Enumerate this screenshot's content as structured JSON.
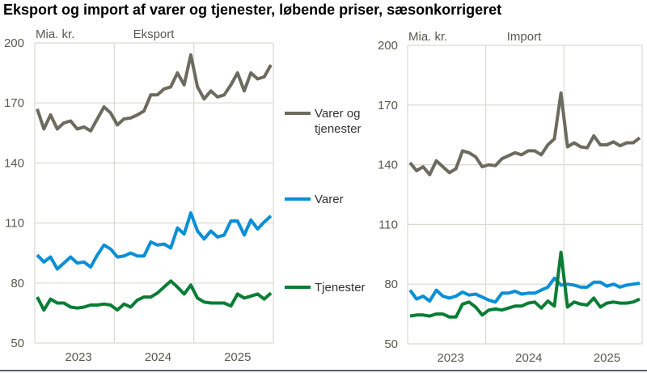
{
  "title": "Eksport og import af varer og tjenester, løbende priser, sæsonkorrigeret",
  "legend": [
    {
      "label_lines": [
        "Varer og",
        "tjenester"
      ],
      "color": "#6b6b5e"
    },
    {
      "label_lines": [
        "Varer"
      ],
      "color": "#0a8fd6"
    },
    {
      "label_lines": [
        "Tjenester"
      ],
      "color": "#0a7d35"
    }
  ],
  "chart_data": [
    {
      "type": "line",
      "title": "Eksport",
      "ylabel": "Mia. kr.",
      "ylim": [
        50,
        200
      ],
      "yticks": [
        50,
        80,
        110,
        140,
        170,
        200
      ],
      "xtick_labels": [
        "2023",
        "2024",
        "2025"
      ],
      "grid": true,
      "series": [
        {
          "name": "Varer og tjenester",
          "color": "#6b6b5e",
          "values": [
            167,
            157,
            164,
            157,
            160,
            161,
            157,
            158,
            156,
            162,
            168,
            165,
            159,
            162,
            162.5,
            164,
            166,
            174,
            174,
            177,
            178,
            185,
            179,
            194,
            178,
            172,
            176,
            173,
            174,
            179,
            185,
            176,
            185,
            182,
            183,
            189
          ]
        },
        {
          "name": "Varer",
          "color": "#0a8fd6",
          "values": [
            94,
            90.5,
            93,
            87,
            90,
            93,
            90,
            90.5,
            88,
            94,
            99,
            97,
            93,
            93.5,
            95,
            93.5,
            93.5,
            100.5,
            99,
            99.5,
            97.5,
            107.5,
            104.5,
            115,
            106,
            102,
            106,
            103,
            104,
            111,
            111,
            104,
            111.5,
            107,
            110.5,
            113.5
          ]
        },
        {
          "name": "Tjenester",
          "color": "#0a7d35",
          "values": [
            73,
            66.5,
            72,
            70,
            70,
            68,
            67.5,
            68,
            69,
            69,
            69.5,
            69,
            66.5,
            69.5,
            68,
            71.5,
            73,
            73,
            75,
            78,
            81,
            78,
            74.5,
            79,
            72.5,
            70.5,
            70,
            70,
            70,
            68.5,
            74.5,
            72.5,
            73.5,
            74.5,
            72,
            75
          ]
        }
      ]
    },
    {
      "type": "line",
      "title": "Import",
      "ylabel": "Mia. kr.",
      "ylim": [
        50,
        200
      ],
      "yticks": [
        50,
        80,
        110,
        140,
        170,
        200
      ],
      "xtick_labels": [
        "2023",
        "2024",
        "2025"
      ],
      "grid": true,
      "series": [
        {
          "name": "Varer og tjenester",
          "color": "#6b6b5e",
          "values": [
            141,
            137,
            139,
            135,
            142,
            139,
            136,
            138,
            147,
            146,
            144,
            139,
            140,
            139.5,
            143,
            144.5,
            146,
            145,
            147,
            147,
            145,
            150,
            153,
            176,
            149,
            151,
            149,
            148.5,
            154.5,
            150,
            150,
            151.5,
            149.5,
            151,
            151,
            153.5
          ]
        },
        {
          "name": "Varer",
          "color": "#0a8fd6",
          "values": [
            77,
            72.5,
            74,
            71.5,
            77,
            74,
            73,
            74,
            76,
            74.5,
            75,
            73.5,
            72,
            71,
            75.5,
            75.5,
            76.5,
            75,
            75.5,
            75.5,
            77,
            78.5,
            83,
            79.5,
            80,
            79.5,
            78.5,
            78.5,
            81,
            81,
            79,
            80,
            78.5,
            79.5,
            80,
            80.5
          ]
        },
        {
          "name": "Tjenester",
          "color": "#0a7d35",
          "values": [
            64,
            64.5,
            64.5,
            64,
            65,
            65,
            63.5,
            63.5,
            70,
            71,
            68.5,
            64.5,
            67,
            67.5,
            67,
            68,
            69,
            69,
            70.5,
            71,
            68,
            71.5,
            69,
            96,
            68.5,
            71,
            70,
            69.5,
            73,
            68.5,
            70.5,
            71,
            70.5,
            70.5,
            71,
            72.5
          ]
        }
      ]
    }
  ]
}
